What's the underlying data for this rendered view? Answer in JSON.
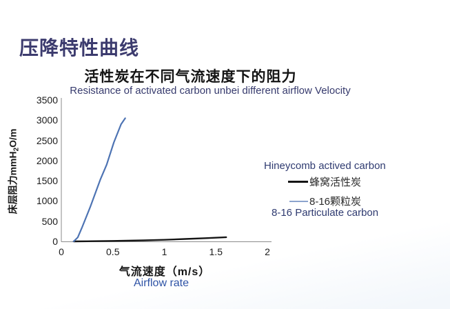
{
  "slide": {
    "title": "压降特性曲线"
  },
  "chart": {
    "title_zh": "活性炭在不同气流速度下的阻力",
    "title_en": "Resistance of activated carbon unbei different airflow Velocity",
    "x_axis": {
      "label_zh": "气流速度（m/s）",
      "label_en": "Airflow rate"
    },
    "y_axis": {
      "label_main": "床层阻力mmH",
      "label_sub": "2",
      "label_rest": "O/m"
    },
    "legend": {
      "honeycomb_en": "Hineycomb actived carbon",
      "honeycomb_zh": "蜂窝活性炭",
      "particulate_zh": "8-16颗粒炭",
      "particulate_en": "8-16 Particulate carbon"
    }
  },
  "chart_data": {
    "type": "line",
    "title": "活性炭在不同气流速度下的阻力",
    "subtitle": "Resistance of activated carbon unbei different airflow Velocity",
    "xlabel": "气流速度（m/s）/ Airflow rate",
    "ylabel": "床层阻力 mmH2O/m",
    "xlim": [
      0,
      2
    ],
    "ylim": [
      0,
      3500
    ],
    "x_ticks": [
      "0",
      "0.5",
      "1",
      "1.5",
      "2"
    ],
    "x_tick_values": [
      0,
      0.5,
      1,
      1.5,
      2
    ],
    "y_ticks": [
      "0",
      "500",
      "1000",
      "1500",
      "2000",
      "2500",
      "3000",
      "3500"
    ],
    "y_tick_values": [
      0,
      500,
      1000,
      1500,
      2000,
      2500,
      3000,
      3500
    ],
    "grid": false,
    "legend_position": "right",
    "series": [
      {
        "name": "蜂窝活性炭 (Hineycomb actived carbon)",
        "color": "#141414",
        "width": 2.4,
        "points": [
          [
            0.12,
            0
          ],
          [
            0.3,
            5
          ],
          [
            0.5,
            12
          ],
          [
            0.8,
            25
          ],
          [
            1.0,
            40
          ],
          [
            1.2,
            60
          ],
          [
            1.4,
            80
          ],
          [
            1.6,
            105
          ]
        ]
      },
      {
        "name": "8-16颗粒炭 (8-16 Particulate carbon)",
        "color": "#4d73b3",
        "width": 2.2,
        "points": [
          [
            0.12,
            0
          ],
          [
            0.16,
            100
          ],
          [
            0.2,
            340
          ],
          [
            0.28,
            850
          ],
          [
            0.38,
            1540
          ],
          [
            0.44,
            1900
          ],
          [
            0.51,
            2450
          ],
          [
            0.58,
            2900
          ],
          [
            0.62,
            3050
          ]
        ]
      }
    ]
  }
}
